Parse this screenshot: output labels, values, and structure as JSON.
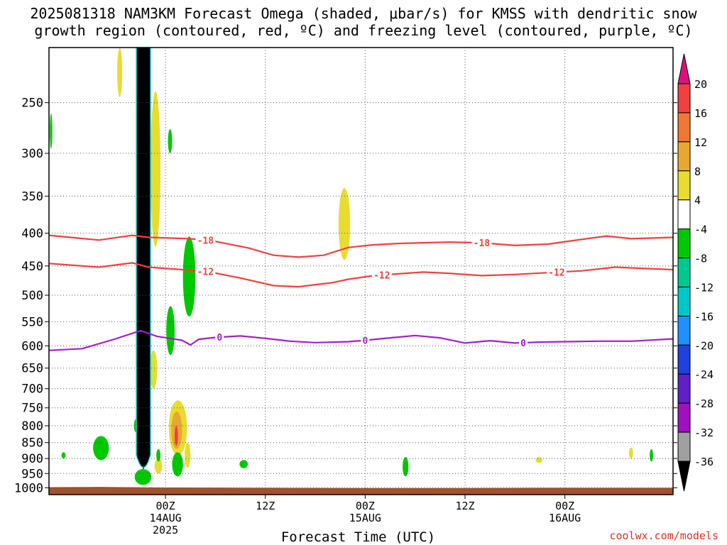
{
  "title": {
    "line1": "2025081318 NAM3KM Forecast Omega (shaded, μbar/s) for KMSS with dendritic snow",
    "line2": "growth region (contoured, red, ºC) and freezing level (contoured, purple, ºC)"
  },
  "credit": "coolwx.com/models",
  "colors": {
    "omega_black": "#000000",
    "green": "#00d000",
    "yellow": "#e8dc30",
    "orange": "#f0a040",
    "red": "#f04040",
    "terrain": "#a0522d",
    "dgz_contour": "#f04040",
    "freezing_contour": "#a020c8",
    "grid": "#555555"
  },
  "chart_data": {
    "type": "heatmap",
    "xlabel": "Forecast Time (UTC)",
    "ylabel": "",
    "xlim_hours": [
      -14,
      61
    ],
    "ylim_mb": [
      205,
      1025
    ],
    "y_scale": "log",
    "y_reversed": true,
    "y_ticks": [
      250,
      300,
      350,
      400,
      450,
      500,
      550,
      600,
      650,
      700,
      750,
      800,
      850,
      900,
      950,
      1000
    ],
    "x_ticks": [
      {
        "hour": 0,
        "l1": "00Z",
        "l2": "14AUG",
        "l3": "2025"
      },
      {
        "hour": 12,
        "l1": "12Z",
        "l2": "",
        "l3": ""
      },
      {
        "hour": 24,
        "l1": "00Z",
        "l2": "15AUG",
        "l3": ""
      },
      {
        "hour": 36,
        "l1": "12Z",
        "l2": "",
        "l3": ""
      },
      {
        "hour": 48,
        "l1": "00Z",
        "l2": "16AUG",
        "l3": ""
      }
    ],
    "grid": true,
    "colorbar": {
      "ticks": [
        20,
        16,
        12,
        8,
        4,
        -4,
        -8,
        -12,
        -16,
        -20,
        -24,
        -28,
        -32,
        -36
      ],
      "bins": [
        {
          "lo": 16,
          "hi": 20,
          "color": "#f04040"
        },
        {
          "lo": 12,
          "hi": 16,
          "color": "#f07830"
        },
        {
          "lo": 8,
          "hi": 12,
          "color": "#e8a830"
        },
        {
          "lo": 4,
          "hi": 8,
          "color": "#e8dc30"
        },
        {
          "lo": -4,
          "hi": 4,
          "color": "#ffffff"
        },
        {
          "lo": -8,
          "hi": -4,
          "color": "#00c800"
        },
        {
          "lo": -12,
          "hi": -8,
          "color": "#00c890"
        },
        {
          "lo": -16,
          "hi": -12,
          "color": "#00c8c8"
        },
        {
          "lo": -20,
          "hi": -16,
          "color": "#1e90ff"
        },
        {
          "lo": -24,
          "hi": -20,
          "color": "#2040e0"
        },
        {
          "lo": -28,
          "hi": -24,
          "color": "#6020c8"
        },
        {
          "lo": -32,
          "hi": -28,
          "color": "#a010c0"
        },
        {
          "lo": -36,
          "hi": -32,
          "color": "#a0a0a0"
        }
      ],
      "top_arrow_color": "#e0107a",
      "bottom_arrow_color": "#000000"
    },
    "contours": [
      {
        "name": "-18",
        "color": "#f04040",
        "points": [
          [
            -14,
            403
          ],
          [
            -8,
            410
          ],
          [
            -4,
            403
          ],
          [
            -2,
            406
          ],
          [
            3,
            408
          ],
          [
            6,
            412
          ],
          [
            10,
            422
          ],
          [
            13,
            433
          ],
          [
            16,
            436
          ],
          [
            19,
            433
          ],
          [
            22,
            421
          ],
          [
            25,
            417
          ],
          [
            28,
            415
          ],
          [
            31,
            414
          ],
          [
            34,
            413
          ],
          [
            38,
            414
          ],
          [
            42,
            418
          ],
          [
            46,
            416
          ],
          [
            50,
            409
          ],
          [
            53,
            404
          ],
          [
            56,
            408
          ],
          [
            61,
            406
          ]
        ],
        "labels": [
          {
            "hour": 4.8,
            "text": "-18"
          },
          {
            "hour": 38,
            "text": "-18"
          }
        ]
      },
      {
        "name": "-12",
        "color": "#f04040",
        "points": [
          [
            -14,
            446
          ],
          [
            -8,
            452
          ],
          [
            -4,
            445
          ],
          [
            -2,
            452
          ],
          [
            2,
            456
          ],
          [
            5,
            459
          ],
          [
            9,
            470
          ],
          [
            13,
            483
          ],
          [
            16,
            485
          ],
          [
            20,
            478
          ],
          [
            22,
            472
          ],
          [
            25,
            466
          ],
          [
            28,
            463
          ],
          [
            31,
            460
          ],
          [
            34,
            462
          ],
          [
            38,
            466
          ],
          [
            42,
            464
          ],
          [
            46,
            461
          ],
          [
            50,
            458
          ],
          [
            54,
            452
          ],
          [
            61,
            456
          ]
        ],
        "labels": [
          {
            "hour": 4.8,
            "text": "-12"
          },
          {
            "hour": 26,
            "text": "-12"
          },
          {
            "hour": 47,
            "text": "-12"
          }
        ]
      },
      {
        "name": "0",
        "color": "#a020c8",
        "points": [
          [
            -14,
            610
          ],
          [
            -10,
            606
          ],
          [
            -6,
            585
          ],
          [
            -3,
            568
          ],
          [
            -1,
            580
          ],
          [
            2,
            588
          ],
          [
            3,
            598
          ],
          [
            4,
            586
          ],
          [
            6,
            582
          ],
          [
            9,
            579
          ],
          [
            12,
            584
          ],
          [
            15,
            590
          ],
          [
            18,
            593
          ],
          [
            22,
            591
          ],
          [
            24,
            588
          ],
          [
            27,
            583
          ],
          [
            30,
            578
          ],
          [
            33,
            583
          ],
          [
            36,
            594
          ],
          [
            39,
            589
          ],
          [
            42,
            594
          ],
          [
            45,
            592
          ],
          [
            48,
            591
          ],
          [
            52,
            590
          ],
          [
            56,
            590
          ],
          [
            61,
            585
          ]
        ],
        "labels": [
          {
            "hour": 6.5,
            "text": "0"
          },
          {
            "hour": 24,
            "text": "0"
          },
          {
            "hour": 43,
            "text": "0"
          }
        ]
      }
    ],
    "omega_regions": [
      {
        "value": "<-36",
        "color": "#000000",
        "x": [
          -3.5,
          -1.8
        ],
        "p": [
          205,
          935
        ]
      },
      {
        "value": "4 to 8",
        "color": "#e8dc30",
        "x": [
          -1.8,
          -0.6
        ],
        "p": [
          240,
          420
        ]
      },
      {
        "value": "4 to 8",
        "color": "#e8dc30",
        "x": [
          -5.8,
          -5.2
        ],
        "p": [
          205,
          245
        ]
      },
      {
        "value": "4 to 8",
        "color": "#e8dc30",
        "x": [
          -1.9,
          -1.0
        ],
        "p": [
          610,
          700
        ]
      },
      {
        "value": "4 to 8",
        "color": "#e8dc30",
        "x": [
          20.8,
          22.2
        ],
        "p": [
          340,
          440
        ]
      },
      {
        "value": "4 to 8",
        "color": "#e8dc30",
        "x": [
          0.4,
          2.6
        ],
        "p": [
          730,
          890
        ]
      },
      {
        "value": "8 to 12",
        "color": "#e8a830",
        "x": [
          0.7,
          2.0
        ],
        "p": [
          760,
          870
        ]
      },
      {
        "value": "16 to 20",
        "color": "#f04040",
        "x": [
          1.1,
          1.5
        ],
        "p": [
          800,
          860
        ]
      },
      {
        "value": "4 to 8",
        "color": "#e8dc30",
        "x": [
          2.3,
          3.0
        ],
        "p": [
          850,
          930
        ]
      },
      {
        "value": "4 to 8",
        "color": "#e8dc30",
        "x": [
          -1.3,
          -0.4
        ],
        "p": [
          900,
          950
        ]
      },
      {
        "value": "4 to 8",
        "color": "#e8dc30",
        "x": [
          44.5,
          45.3
        ],
        "p": [
          895,
          915
        ]
      },
      {
        "value": "4 to 8",
        "color": "#e8dc30",
        "x": [
          55.7,
          56.2
        ],
        "p": [
          865,
          900
        ]
      },
      {
        "value": "-8 to -4",
        "color": "#00c800",
        "x": [
          2.1,
          3.6
        ],
        "p": [
          405,
          540
        ]
      },
      {
        "value": "-8 to -4",
        "color": "#00c800",
        "x": [
          0.1,
          1.1
        ],
        "p": [
          520,
          620
        ]
      },
      {
        "value": "-8 to -4",
        "color": "#00c800",
        "x": [
          0.3,
          0.8
        ],
        "p": [
          275,
          300
        ]
      },
      {
        "value": "-8 to -4",
        "color": "#00c800",
        "x": [
          -13.9,
          -13.6
        ],
        "p": [
          260,
          295
        ]
      },
      {
        "value": "-8 to -4",
        "color": "#00c800",
        "x": [
          -8.7,
          -6.8
        ],
        "p": [
          830,
          905
        ]
      },
      {
        "value": "-8 to -4",
        "color": "#00c800",
        "x": [
          0.8,
          2.1
        ],
        "p": [
          880,
          960
        ]
      },
      {
        "value": "-8 to -4",
        "color": "#00c800",
        "x": [
          -3.8,
          -3.2
        ],
        "p": [
          780,
          820
        ]
      },
      {
        "value": "-8 to -4",
        "color": "#00c800",
        "x": [
          -3.7,
          -1.7
        ],
        "p": [
          935,
          990
        ]
      },
      {
        "value": "-8 to -4",
        "color": "#00c800",
        "x": [
          -1.1,
          -0.6
        ],
        "p": [
          870,
          910
        ]
      },
      {
        "value": "-8 to -4",
        "color": "#00c800",
        "x": [
          -12.5,
          -12.0
        ],
        "p": [
          880,
          900
        ]
      },
      {
        "value": "-8 to -4",
        "color": "#00c800",
        "x": [
          8.9,
          9.9
        ],
        "p": [
          905,
          932
        ]
      },
      {
        "value": "-8 to -4",
        "color": "#00c800",
        "x": [
          28.5,
          29.2
        ],
        "p": [
          895,
          960
        ]
      },
      {
        "value": "-8 to -4",
        "color": "#00c800",
        "x": [
          58.2,
          58.6
        ],
        "p": [
          870,
          910
        ]
      }
    ],
    "terrain": {
      "color": "#a0522d",
      "surface": [
        [
          -14,
          998
        ],
        [
          -8,
          997
        ],
        [
          0,
          999
        ],
        [
          12,
          1000
        ],
        [
          24,
          1001
        ],
        [
          36,
          1001
        ],
        [
          48,
          1000
        ],
        [
          61,
          1000
        ]
      ]
    }
  }
}
